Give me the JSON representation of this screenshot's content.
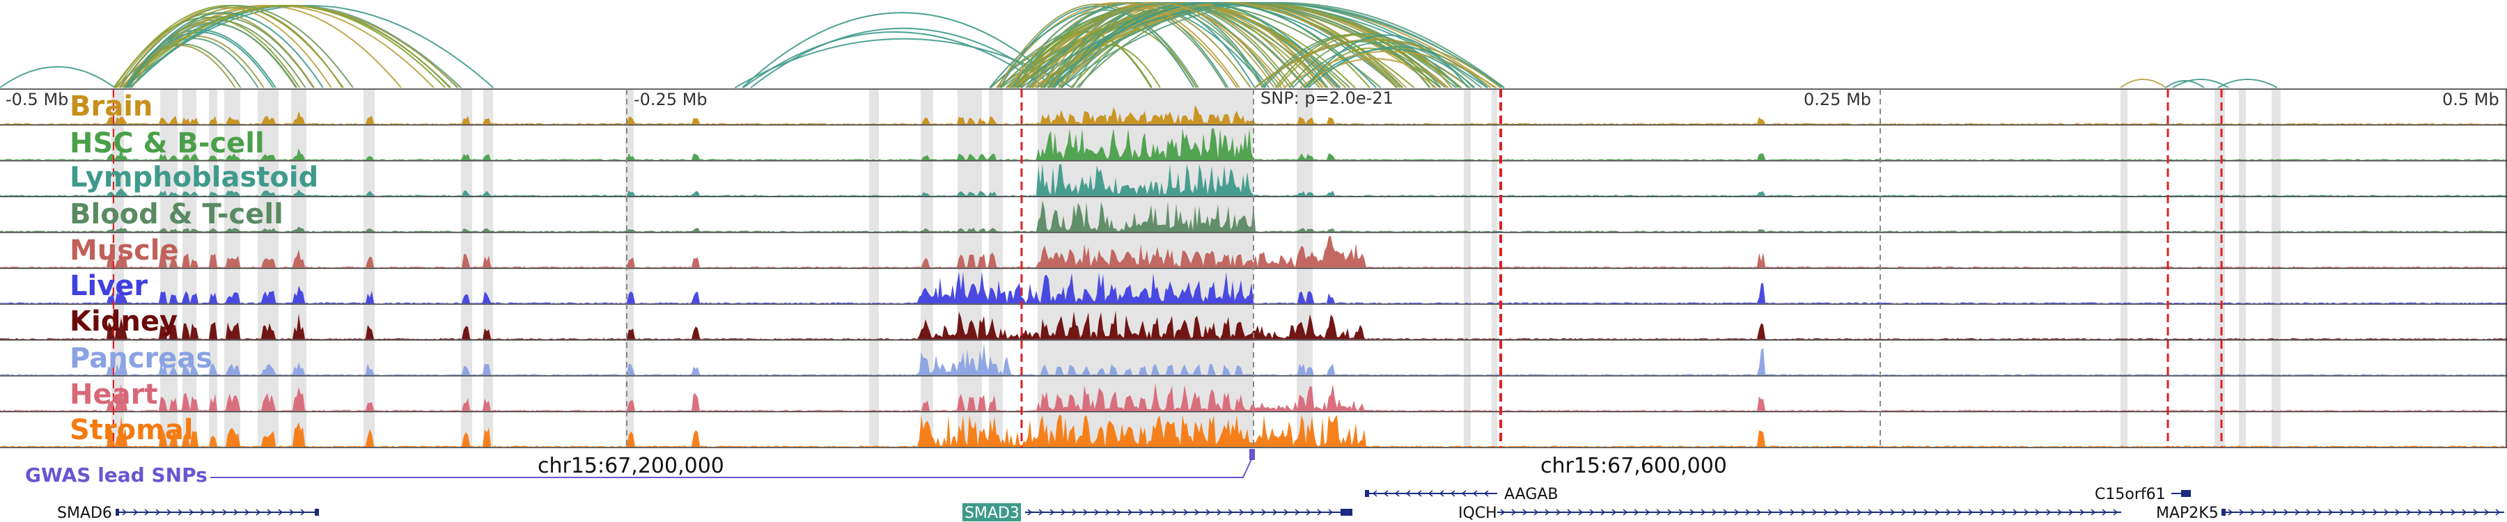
{
  "axis": {
    "ticks": [
      "-0.5 Mb",
      "-0.25 Mb",
      "0.25 Mb",
      "0.5 Mb"
    ],
    "snp_label": "SNP: p=2.0e-21"
  },
  "tracks": [
    {
      "label": "Brain",
      "color": "#c8901a"
    },
    {
      "label": "HSC & B-cell",
      "color": "#4aa04a"
    },
    {
      "label": "Lymphoblastoid",
      "color": "#3e9a8a"
    },
    {
      "label": "Blood & T-cell",
      "color": "#5a8a62"
    },
    {
      "label": "Muscle",
      "color": "#c0605a"
    },
    {
      "label": "Liver",
      "color": "#4040e0"
    },
    {
      "label": "Kidney",
      "color": "#6a0a0a"
    },
    {
      "label": "Pancreas",
      "color": "#8aa2e2"
    },
    {
      "label": "Heart",
      "color": "#d86878"
    },
    {
      "label": "Stromal",
      "color": "#f57a10"
    }
  ],
  "gwas": {
    "label": "GWAS lead SNPs",
    "coord_left": "chr15:67,200,000",
    "coord_right": "chr15:67,600,000",
    "color": "#6a55d0"
  },
  "genes": [
    "SMAD6",
    "SMAD3",
    "AAGAB",
    "IQCH",
    "C15orf61",
    "MAP2K5"
  ],
  "colors": {
    "red_marker": "#e02020",
    "gene_line": "#1a2a80",
    "highlight": "#e4e4e4",
    "smad3_box": "#3e9a8a"
  }
}
